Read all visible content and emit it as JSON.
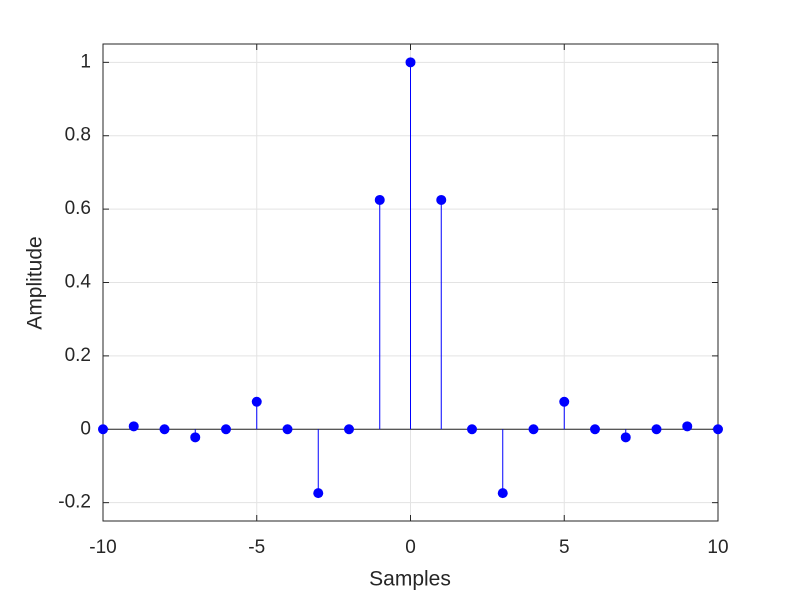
{
  "chart_data": {
    "type": "stem",
    "xlabel": "Samples",
    "ylabel": "Amplitude",
    "x": [
      -10,
      -9,
      -8,
      -7,
      -6,
      -5,
      -4,
      -3,
      -2,
      -1,
      0,
      1,
      2,
      3,
      4,
      5,
      6,
      7,
      8,
      9,
      10
    ],
    "values": [
      0,
      0.008,
      0,
      -0.022,
      0,
      0.075,
      0,
      -0.174,
      0,
      0.625,
      1,
      0.625,
      0,
      -0.174,
      0,
      0.075,
      0,
      -0.022,
      0,
      0.008,
      0
    ],
    "color": "#0000ff",
    "xlim": [
      -10,
      10
    ],
    "ylim": [
      -0.25,
      1.05
    ],
    "xticks": [
      -10,
      -5,
      0,
      5,
      10
    ],
    "yticks": [
      -0.2,
      0,
      0.2,
      0.4,
      0.6,
      0.8,
      1
    ],
    "grid": true
  }
}
